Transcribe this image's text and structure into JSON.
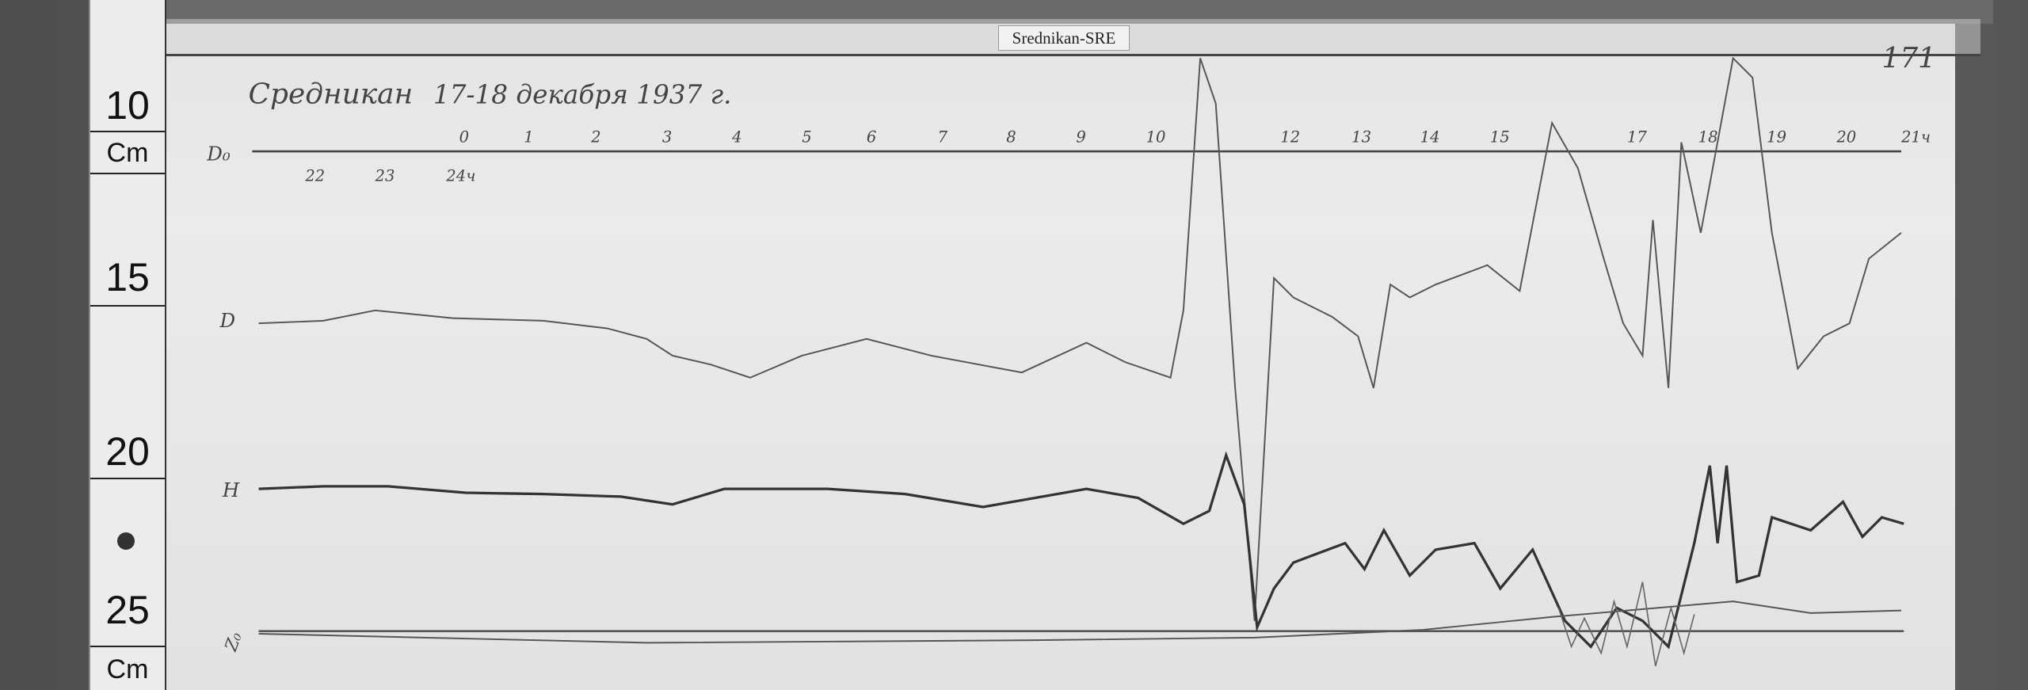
{
  "station_label": "Srednikan-SRE",
  "sheet_number": "171",
  "title": "Средникан",
  "date": "17-18 декабря 1937 г.",
  "ruler": {
    "marks": [
      "10",
      "15",
      "20",
      "25"
    ],
    "unit": "Cm"
  },
  "baseline_label": "D₀",
  "trace_labels": {
    "d": "D",
    "h": "H",
    "z": "Z₀"
  },
  "hours_top": [
    "0",
    "1",
    "2",
    "3",
    "4",
    "5",
    "6",
    "7",
    "8",
    "9",
    "10",
    "12",
    "13",
    "14",
    "15",
    "17",
    "18",
    "19",
    "20",
    "21ч"
  ],
  "hours_bottom": [
    "22",
    "23",
    "24ч"
  ],
  "colors": {
    "paper": "#e8e8e8",
    "trace": "#333333",
    "background": "#5c5c5c"
  }
}
